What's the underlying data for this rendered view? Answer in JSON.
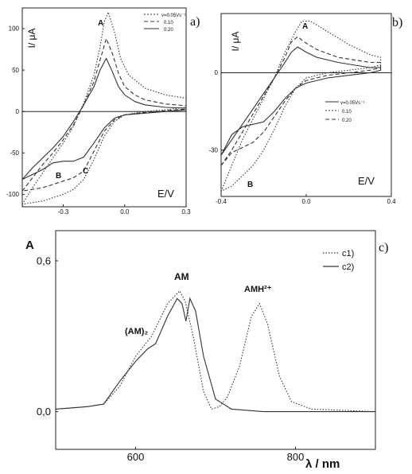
{
  "chart_data": [
    {
      "panel": "a)",
      "type": "line",
      "ylabel": "I/ μA",
      "xlabel": "E/V",
      "xlim": [
        -0.5,
        0.3
      ],
      "ylim": [
        -115,
        125
      ],
      "x_ticks": [
        -0.3,
        0.0,
        0.3
      ],
      "x_tick_labels": [
        "-0.3",
        "0.0",
        "0.3"
      ],
      "y_ticks": [
        100,
        50,
        0,
        -50,
        -100
      ],
      "y_tick_labels": [
        "100",
        "50",
        "0",
        "-50",
        "-100"
      ],
      "legend": [
        "v=0.05Vs⁻¹",
        "0.10",
        "0.20"
      ],
      "legend_position": "top-right",
      "annotations": [
        "A",
        "B",
        "C"
      ],
      "series": [
        {
          "style": "solid",
          "forward": [
            [
              -0.5,
              -82
            ],
            [
              -0.45,
              -68
            ],
            [
              -0.4,
              -56
            ],
            [
              -0.35,
              -44
            ],
            [
              -0.3,
              -30
            ],
            [
              -0.25,
              -12
            ],
            [
              -0.2,
              8
            ],
            [
              -0.15,
              30
            ],
            [
              -0.12,
              50
            ],
            [
              -0.09,
              64
            ],
            [
              -0.06,
              48
            ],
            [
              -0.03,
              30
            ],
            [
              0.0,
              20
            ],
            [
              0.05,
              12
            ],
            [
              0.1,
              8
            ],
            [
              0.2,
              5
            ],
            [
              0.3,
              4
            ]
          ],
          "reverse": [
            [
              0.3,
              2
            ],
            [
              0.2,
              0
            ],
            [
              0.1,
              -2
            ],
            [
              0.0,
              -4
            ],
            [
              -0.05,
              -8
            ],
            [
              -0.1,
              -20
            ],
            [
              -0.15,
              -38
            ],
            [
              -0.2,
              -55
            ],
            [
              -0.25,
              -60
            ],
            [
              -0.3,
              -60
            ],
            [
              -0.35,
              -62
            ],
            [
              -0.4,
              -70
            ],
            [
              -0.45,
              -76
            ],
            [
              -0.5,
              -82
            ]
          ]
        },
        {
          "style": "dashed",
          "forward": [
            [
              -0.5,
              -96
            ],
            [
              -0.45,
              -80
            ],
            [
              -0.4,
              -64
            ],
            [
              -0.35,
              -50
            ],
            [
              -0.3,
              -34
            ],
            [
              -0.25,
              -16
            ],
            [
              -0.2,
              8
            ],
            [
              -0.15,
              36
            ],
            [
              -0.12,
              62
            ],
            [
              -0.09,
              88
            ],
            [
              -0.06,
              70
            ],
            [
              -0.03,
              46
            ],
            [
              0.0,
              30
            ],
            [
              0.05,
              20
            ],
            [
              0.1,
              14
            ],
            [
              0.2,
              9
            ],
            [
              0.3,
              7
            ]
          ],
          "reverse": [
            [
              0.3,
              3
            ],
            [
              0.2,
              1
            ],
            [
              0.1,
              -1
            ],
            [
              0.0,
              -4
            ],
            [
              -0.05,
              -10
            ],
            [
              -0.1,
              -24
            ],
            [
              -0.15,
              -48
            ],
            [
              -0.2,
              -72
            ],
            [
              -0.25,
              -80
            ],
            [
              -0.3,
              -84
            ],
            [
              -0.35,
              -88
            ],
            [
              -0.4,
              -92
            ],
            [
              -0.45,
              -94
            ],
            [
              -0.5,
              -96
            ]
          ]
        },
        {
          "style": "dotted",
          "forward": [
            [
              -0.5,
              -112
            ],
            [
              -0.45,
              -92
            ],
            [
              -0.4,
              -74
            ],
            [
              -0.35,
              -56
            ],
            [
              -0.3,
              -38
            ],
            [
              -0.25,
              -18
            ],
            [
              -0.2,
              10
            ],
            [
              -0.15,
              44
            ],
            [
              -0.12,
              78
            ],
            [
              -0.1,
              108
            ],
            [
              -0.08,
              120
            ],
            [
              -0.05,
              96
            ],
            [
              -0.02,
              64
            ],
            [
              0.02,
              44
            ],
            [
              0.1,
              28
            ],
            [
              0.2,
              20
            ],
            [
              0.3,
              16
            ]
          ],
          "reverse": [
            [
              0.3,
              5
            ],
            [
              0.2,
              2
            ],
            [
              0.1,
              0
            ],
            [
              0.0,
              -4
            ],
            [
              -0.05,
              -12
            ],
            [
              -0.1,
              -30
            ],
            [
              -0.15,
              -58
            ],
            [
              -0.2,
              -82
            ],
            [
              -0.25,
              -94
            ],
            [
              -0.3,
              -100
            ],
            [
              -0.35,
              -104
            ],
            [
              -0.4,
              -108
            ],
            [
              -0.45,
              -110
            ],
            [
              -0.5,
              -112
            ]
          ]
        }
      ]
    },
    {
      "panel": "b)",
      "type": "line",
      "ylabel": "I/ μA",
      "xlabel": "E/V",
      "xlim": [
        -0.4,
        0.4
      ],
      "ylim": [
        -48,
        23
      ],
      "x_ticks": [
        -0.4,
        0.0,
        0.4
      ],
      "x_tick_labels": [
        "-0.4",
        "0.0",
        "0.4"
      ],
      "y_ticks": [
        0,
        -30
      ],
      "y_tick_labels": [
        "0",
        "-30"
      ],
      "legend": [
        "v=0.05Vs⁻¹",
        "0.10",
        "0.20"
      ],
      "legend_position": "center-right",
      "annotations": [
        "A",
        "B"
      ],
      "series": [
        {
          "style": "solid",
          "forward": [
            [
              -0.4,
              -32
            ],
            [
              -0.35,
              -26
            ],
            [
              -0.3,
              -20
            ],
            [
              -0.25,
              -14
            ],
            [
              -0.2,
              -8
            ],
            [
              -0.15,
              -2
            ],
            [
              -0.1,
              4
            ],
            [
              -0.07,
              8
            ],
            [
              -0.04,
              10
            ],
            [
              0.0,
              8
            ],
            [
              0.05,
              6
            ],
            [
              0.15,
              4
            ],
            [
              0.3,
              2
            ],
            [
              0.35,
              2
            ]
          ],
          "reverse": [
            [
              0.35,
              1
            ],
            [
              0.3,
              0
            ],
            [
              0.2,
              -1
            ],
            [
              0.1,
              -2
            ],
            [
              0.0,
              -4
            ],
            [
              -0.05,
              -6
            ],
            [
              -0.1,
              -10
            ],
            [
              -0.15,
              -15
            ],
            [
              -0.2,
              -19
            ],
            [
              -0.25,
              -20
            ],
            [
              -0.3,
              -21
            ],
            [
              -0.35,
              -24
            ],
            [
              -0.4,
              -32
            ]
          ]
        },
        {
          "style": "dashed",
          "forward": [
            [
              -0.4,
              -36
            ],
            [
              -0.35,
              -30
            ],
            [
              -0.3,
              -23
            ],
            [
              -0.25,
              -16
            ],
            [
              -0.2,
              -9
            ],
            [
              -0.15,
              -2
            ],
            [
              -0.1,
              6
            ],
            [
              -0.07,
              12
            ],
            [
              -0.04,
              14
            ],
            [
              -0.01,
              12
            ],
            [
              0.05,
              9
            ],
            [
              0.15,
              6
            ],
            [
              0.3,
              4
            ],
            [
              0.35,
              4
            ]
          ],
          "reverse": [
            [
              0.35,
              2
            ],
            [
              0.3,
              1
            ],
            [
              0.2,
              0
            ],
            [
              0.1,
              -1
            ],
            [
              0.0,
              -3
            ],
            [
              -0.05,
              -6
            ],
            [
              -0.1,
              -11
            ],
            [
              -0.15,
              -17
            ],
            [
              -0.2,
              -23
            ],
            [
              -0.25,
              -27
            ],
            [
              -0.3,
              -29
            ],
            [
              -0.35,
              -31
            ],
            [
              -0.4,
              -36
            ]
          ]
        },
        {
          "style": "dotted",
          "forward": [
            [
              -0.4,
              -46
            ],
            [
              -0.35,
              -36
            ],
            [
              -0.3,
              -26
            ],
            [
              -0.25,
              -18
            ],
            [
              -0.2,
              -10
            ],
            [
              -0.15,
              -2
            ],
            [
              -0.1,
              8
            ],
            [
              -0.05,
              16
            ],
            [
              -0.02,
              20
            ],
            [
              0.02,
              20
            ],
            [
              0.1,
              16
            ],
            [
              0.2,
              11
            ],
            [
              0.3,
              7
            ],
            [
              0.35,
              6
            ]
          ],
          "reverse": [
            [
              0.35,
              3
            ],
            [
              0.3,
              2
            ],
            [
              0.2,
              1
            ],
            [
              0.1,
              0
            ],
            [
              0.0,
              -2
            ],
            [
              -0.05,
              -6
            ],
            [
              -0.1,
              -13
            ],
            [
              -0.15,
              -22
            ],
            [
              -0.2,
              -30
            ],
            [
              -0.25,
              -36
            ],
            [
              -0.3,
              -40
            ],
            [
              -0.35,
              -44
            ],
            [
              -0.4,
              -46
            ]
          ]
        }
      ]
    },
    {
      "panel": "c)",
      "type": "line",
      "ylabel": "A",
      "xlabel": "λ / nm",
      "xlim": [
        500,
        900
      ],
      "ylim": [
        -0.15,
        0.72
      ],
      "x_ticks": [
        600,
        800
      ],
      "x_tick_labels": [
        "600",
        "800"
      ],
      "y_ticks": [
        0.0,
        0.6
      ],
      "y_tick_labels": [
        "0,0",
        "0,6"
      ],
      "legend": [
        "c1)",
        "c2)"
      ],
      "legend_position": "top-right",
      "annotations": [
        "AM",
        "AMH²⁺",
        "(AM)₂"
      ],
      "series": [
        {
          "name": "c1)",
          "style": "dotted",
          "points": [
            [
              500,
              0.01
            ],
            [
              540,
              0.02
            ],
            [
              560,
              0.03
            ],
            [
              580,
              0.1
            ],
            [
              600,
              0.22
            ],
            [
              620,
              0.3
            ],
            [
              640,
              0.43
            ],
            [
              655,
              0.48
            ],
            [
              662,
              0.44
            ],
            [
              672,
              0.3
            ],
            [
              685,
              0.08
            ],
            [
              695,
              0.01
            ],
            [
              705,
              0.02
            ],
            [
              715,
              0.06
            ],
            [
              730,
              0.18
            ],
            [
              745,
              0.38
            ],
            [
              755,
              0.43
            ],
            [
              765,
              0.35
            ],
            [
              780,
              0.14
            ],
            [
              795,
              0.04
            ],
            [
              820,
              0.01
            ],
            [
              900,
              0.0
            ]
          ]
        },
        {
          "name": "c2)",
          "style": "solid",
          "points": [
            [
              500,
              0.01
            ],
            [
              540,
              0.02
            ],
            [
              560,
              0.03
            ],
            [
              580,
              0.12
            ],
            [
              600,
              0.2
            ],
            [
              615,
              0.25
            ],
            [
              625,
              0.27
            ],
            [
              640,
              0.38
            ],
            [
              652,
              0.45
            ],
            [
              658,
              0.43
            ],
            [
              663,
              0.36
            ],
            [
              668,
              0.45
            ],
            [
              675,
              0.4
            ],
            [
              685,
              0.22
            ],
            [
              700,
              0.05
            ],
            [
              720,
              0.01
            ],
            [
              760,
              0.0
            ],
            [
              900,
              0.0
            ]
          ]
        }
      ]
    }
  ]
}
